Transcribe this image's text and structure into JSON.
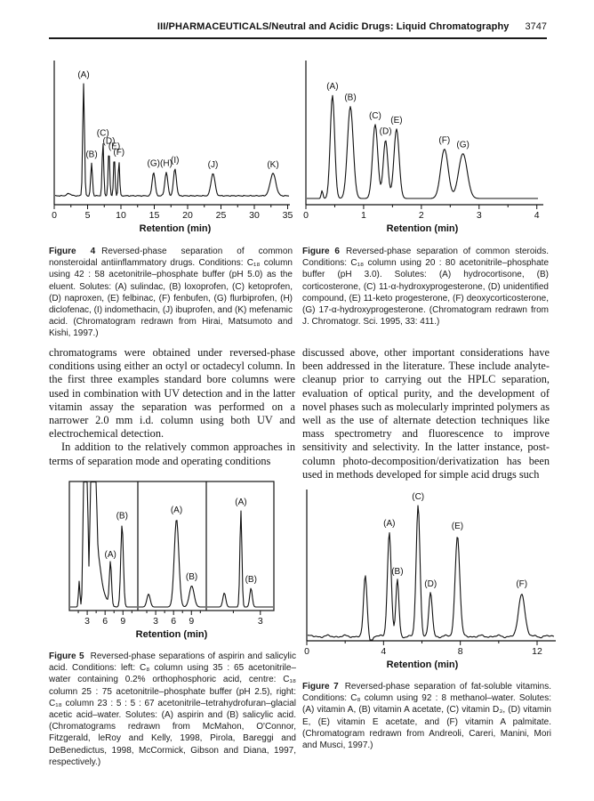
{
  "page": {
    "header_title": "III/PHARMACEUTICALS/Neutral and Acidic Drugs: Liquid Chromatography",
    "page_number": "3747"
  },
  "body": {
    "left_paragraphs": [
      "chromatograms were obtained under reversed-phase conditions using either an octyl or octadecyl column. In the first three examples standard bore columns were used in combination with UV detection and in the latter vitamin assay the separation was performed on a narrower 2.0 mm i.d. column using both UV and electrochemical detection.",
      "In addition to the relatively common approaches in terms of separation mode and operating conditions"
    ],
    "right_paragraphs": [
      "discussed above, other important considerations have been addressed in the literature. These include analyte-cleanup prior to carrying out the HPLC separation, evaluation of optical purity, and the development of novel phases such as molecularly imprinted polymers as well as the use of alternate detection techniques like mass spectrometry and fluorescence to improve sensitivity and selectivity. In the latter instance, post-column photo-decomposition/derivatization has been used in methods developed for simple acid drugs such"
    ]
  },
  "figures": {
    "figure4": {
      "label": "Figure 4",
      "caption": "Reversed-phase separation of common nonsteroidal antiinflammatory drugs. Conditions: C₁₈ column using 42 : 58 acetonitrile–phosphate buffer (pH 5.0) as the eluent. Solutes: (A) sulindac, (B) loxoprofen, (C) ketoprofen, (D) naproxen, (E) felbinac, (F) fenbufen, (G) flurbiprofen, (H) diclofenac, (I) indomethacin, (J) ibuprofen, and (K) mefenamic acid. (Chromatogram redrawn from Hirai, Matsumoto and Kishi, 1997.)",
      "chart_data": {
        "type": "line",
        "xlabel": "Retention (min)",
        "baseline_noise": 0.0025,
        "panels": [
          {
            "xmin": 0,
            "xmax": 35.2,
            "major_ticks": [
              0,
              5,
              10,
              15,
              20,
              25,
              30,
              35
            ],
            "minor_ticks": [
              2.5,
              7.5,
              12.5,
              17.5,
              22.5,
              27.5,
              32.5
            ],
            "peaks": [
              {
                "label": "",
                "t": 2.2,
                "h": 0.02,
                "w": 0.3
              },
              {
                "label": "(A)",
                "t": 4.4,
                "h": 1.0,
                "w": 0.13
              },
              {
                "label": "(B)",
                "t": 5.6,
                "h": 0.29,
                "w": 0.13
              },
              {
                "label": "(C)",
                "t": 7.3,
                "h": 0.48,
                "w": 0.12
              },
              {
                "label": "(D)",
                "t": 8.2,
                "h": 0.41,
                "w": 0.12
              },
              {
                "label": "(E)",
                "t": 9.0,
                "h": 0.36,
                "w": 0.11
              },
              {
                "label": "(F)",
                "t": 9.7,
                "h": 0.31,
                "w": 0.11
              },
              {
                "label": "(G)",
                "t": 14.9,
                "h": 0.21,
                "w": 0.22
              },
              {
                "label": "(H)",
                "t": 16.8,
                "h": 0.21,
                "w": 0.22
              },
              {
                "label": "(I)",
                "t": 18.1,
                "h": 0.24,
                "w": 0.22
              },
              {
                "label": "(J)",
                "t": 23.8,
                "h": 0.2,
                "w": 0.3
              },
              {
                "label": "(K)",
                "t": 32.8,
                "h": 0.2,
                "w": 0.42
              }
            ]
          }
        ]
      }
    },
    "figure6": {
      "label": "Figure 6",
      "caption": "Reversed-phase separation of common steroids. Conditions: C₁₈ column using 20 : 80 acetonitrile–phosphate buffer (pH 3.0). Solutes: (A) hydrocortisone, (B) corticosterone, (C) 11-α-hydroxyprogesterone, (D) unidentified compound, (E) 11-keto progesterone, (F) deoxycorticosterone, (G) 17-α-hydroxyprogesterone. (Chromatogram redrawn from J. Chromatogr. Sci. 1995, 33: 411.)",
      "chart_data": {
        "type": "line",
        "xlabel": "Retention (min)",
        "panels": [
          {
            "xmin": 0,
            "xmax": 4.02,
            "major_ticks": [
              0,
              1,
              2,
              3,
              4
            ],
            "minor_ticks": [
              0.5,
              1.5,
              2.5,
              3.5
            ],
            "peaks": [
              {
                "label": "",
                "t": 0.28,
                "h": 0.07,
                "w": 0.015
              },
              {
                "label": "(A)",
                "t": 0.46,
                "h": 0.92,
                "w": 0.038
              },
              {
                "label": "(B)",
                "t": 0.77,
                "h": 0.82,
                "w": 0.05
              },
              {
                "label": "(C)",
                "t": 1.2,
                "h": 0.66,
                "w": 0.045
              },
              {
                "label": "(D)",
                "t": 1.38,
                "h": 0.52,
                "w": 0.04
              },
              {
                "label": "(E)",
                "t": 1.57,
                "h": 0.62,
                "w": 0.045
              },
              {
                "label": "(F)",
                "t": 2.4,
                "h": 0.44,
                "w": 0.065
              },
              {
                "label": "(G)",
                "t": 2.72,
                "h": 0.4,
                "w": 0.075
              }
            ]
          }
        ]
      }
    },
    "figure5": {
      "label": "Figure 5",
      "caption": "Reversed-phase separations of aspirin and salicylic acid. Conditions: left: C₈ column using 35 : 65 acetonitrile–water containing 0.2% orthophosphoric acid, centre: C₁₈ column 25 : 75 acetonitrile–phosphate buffer (pH 2.5), right: C₁₈ column 23 : 5 : 5 : 67 acetonitrile–tetrahydrofuran–glacial acetic acid–water. Solutes: (A) aspirin and (B) salicylic acid. (Chromatograms redrawn from McMahon, O'Connor, Fitzgerald, leRoy and Kelly, 1998, Pirola, Bareggi and DeBenedictus, 1998, McCormick, Gibson and Diana, 1997, respectively.)",
      "chart_data": {
        "type": "line",
        "xlabel": "Retention (min)",
        "panels": [
          {
            "xmin": 0,
            "xmax": 11.5,
            "major_ticks": [
              3,
              6,
              9
            ],
            "minor_ticks": [
              1.5,
              4.5,
              7.5,
              10.5
            ],
            "peaks": [
              {
                "label": "",
                "t": 1.65,
                "h": 0.22,
                "w": 0.12
              },
              {
                "label": "",
                "t": 2.7,
                "h": 5.0,
                "w": 0.22
              },
              {
                "label": "",
                "t": 4.0,
                "h": 5.0,
                "w": 0.28
              },
              {
                "label": "",
                "t": 4.7,
                "h": 0.35,
                "w": 0.5
              },
              {
                "label": "",
                "t": 5.4,
                "h": 0.12,
                "w": 0.8
              },
              {
                "label": "(A)",
                "t": 6.9,
                "h": 0.37,
                "w": 0.18
              },
              {
                "label": "(B)",
                "t": 8.85,
                "h": 0.7,
                "w": 0.22
              }
            ]
          },
          {
            "xmin": 0,
            "xmax": 11.5,
            "major_ticks": [
              3,
              6,
              9
            ],
            "minor_ticks": [
              1.5,
              4.5,
              7.5,
              10.5
            ],
            "peaks": [
              {
                "label": "",
                "t": 1.8,
                "h": 0.11,
                "w": 0.28
              },
              {
                "label": "(A)",
                "t": 6.5,
                "h": 0.75,
                "w": 0.38
              },
              {
                "label": "(B)",
                "t": 9.05,
                "h": 0.18,
                "w": 0.4
              }
            ]
          },
          {
            "xmin": 0,
            "xmax": 3.75,
            "major_ticks": [
              3
            ],
            "minor_ticks": [
              1.5
            ],
            "peaks": [
              {
                "label": "",
                "t": 1.0,
                "h": 0.12,
                "w": 0.08
              },
              {
                "label": "(A)",
                "t": 1.92,
                "h": 0.82,
                "w": 0.055
              },
              {
                "label": "(B)",
                "t": 2.48,
                "h": 0.16,
                "w": 0.07
              }
            ]
          }
        ]
      }
    },
    "figure7": {
      "label": "Figure 7",
      "caption": "Reversed-phase separation of fat-soluble vitamins. Conditions: C₈ column using 92 : 8 methanol–water. Solutes: (A) vitamin A, (B) vitamin A acetate, (C) vitamin D₃, (D) vitamin E, (E) vitamin E acetate, and (F) vitamin A palmitate. (Chromatogram redrawn from Andreoli, Careri, Manini, Mori and Musci, 1997.)",
      "chart_data": {
        "type": "line",
        "xlabel": "Retention (min)",
        "baseline_noise": 0.006,
        "panels": [
          {
            "xmin": 0,
            "xmax": 12,
            "major_ticks": [
              0,
              4,
              8,
              12
            ],
            "minor_ticks": [
              2,
              6,
              10
            ],
            "peaks": [
              {
                "label": "",
                "t": 3.05,
                "h": 0.43,
                "w": 0.09
              },
              {
                "label": "",
                "t": 3.35,
                "h": -0.06,
                "w": 0.07
              },
              {
                "label": "(A)",
                "t": 4.3,
                "h": 0.74,
                "w": 0.1
              },
              {
                "label": "(B)",
                "t": 4.72,
                "h": 0.4,
                "w": 0.08
              },
              {
                "label": "(C)",
                "t": 5.8,
                "h": 0.93,
                "w": 0.1
              },
              {
                "label": "(D)",
                "t": 6.45,
                "h": 0.31,
                "w": 0.09
              },
              {
                "label": "(E)",
                "t": 7.85,
                "h": 0.72,
                "w": 0.12
              },
              {
                "label": "(F)",
                "t": 11.2,
                "h": 0.31,
                "w": 0.16
              }
            ]
          }
        ]
      }
    }
  }
}
